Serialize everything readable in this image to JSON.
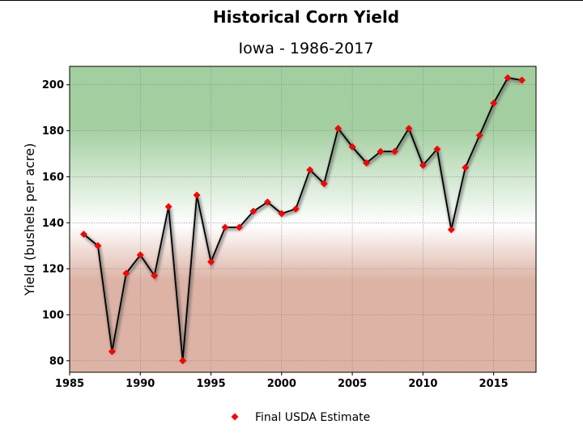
{
  "chart_data": {
    "type": "line",
    "title": "Historical Corn Yield",
    "subtitle": "Iowa  -  1986-2017",
    "ylabel": "Yield (bushels per acre)",
    "xlabel": "",
    "xlim": [
      1985,
      2018
    ],
    "ylim": [
      75,
      208
    ],
    "xticks": [
      1985,
      1990,
      1995,
      2000,
      2005,
      2010,
      2015
    ],
    "yticks": [
      80,
      100,
      120,
      140,
      160,
      180,
      200
    ],
    "grid": true,
    "legend_position": "bottom-center",
    "x": [
      1986,
      1987,
      1988,
      1989,
      1990,
      1991,
      1992,
      1993,
      1994,
      1995,
      1996,
      1997,
      1998,
      1999,
      2000,
      2001,
      2002,
      2003,
      2004,
      2005,
      2006,
      2007,
      2008,
      2009,
      2010,
      2011,
      2012,
      2013,
      2014,
      2015,
      2016,
      2017
    ],
    "series": [
      {
        "name": "Final USDA Estimate",
        "values": [
          135,
          130,
          84,
          118,
          126,
          117,
          147,
          80,
          152,
          123,
          138,
          138,
          145,
          149,
          144,
          146,
          163,
          157,
          181,
          173,
          166,
          171,
          171,
          181,
          165,
          172,
          137,
          164,
          178,
          192,
          203,
          202
        ]
      }
    ],
    "colors": {
      "line": "#000000",
      "marker": "#ff0000",
      "bg_top": "#a3cfa0",
      "bg_mid": "#ffffff",
      "bg_bottom": "#ddb3a5"
    }
  }
}
